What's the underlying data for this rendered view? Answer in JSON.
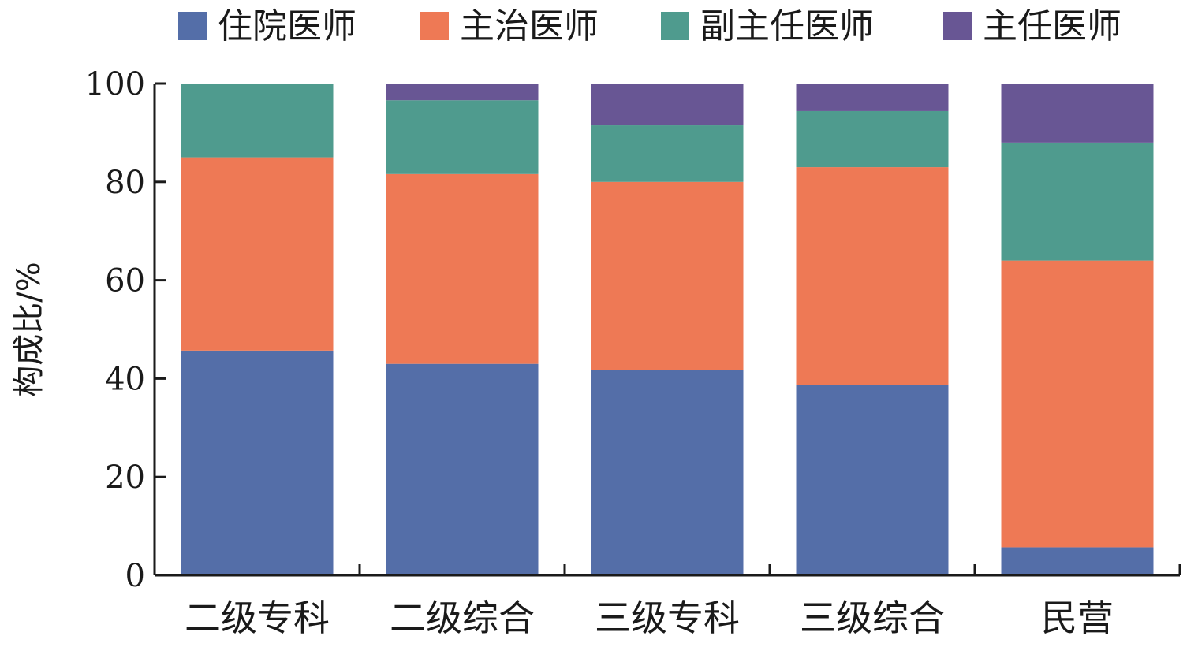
{
  "chart_data": {
    "type": "bar",
    "stacked": true,
    "categories": [
      "二级专科",
      "二级综合",
      "三级专科",
      "三级综合",
      "民营"
    ],
    "series": [
      {
        "name": "住院医师",
        "color": "#546ea8",
        "values": [
          45.7,
          43.0,
          41.7,
          38.7,
          5.7
        ]
      },
      {
        "name": "主治医师",
        "color": "#ee7955",
        "values": [
          39.3,
          38.6,
          38.3,
          44.3,
          58.3
        ]
      },
      {
        "name": "副主任医师",
        "color": "#4f9b8e",
        "values": [
          15.0,
          15.0,
          11.5,
          11.4,
          24.0
        ]
      },
      {
        "name": "主任医师",
        "color": "#685694",
        "values": [
          0.0,
          3.4,
          8.5,
          5.6,
          12.0
        ]
      }
    ],
    "xlabel": "",
    "ylabel": "构成比/%",
    "ylim": [
      0,
      100
    ],
    "yticks": [
      0,
      20,
      40,
      60,
      80,
      100
    ],
    "grid": false,
    "legend_position": "top"
  }
}
